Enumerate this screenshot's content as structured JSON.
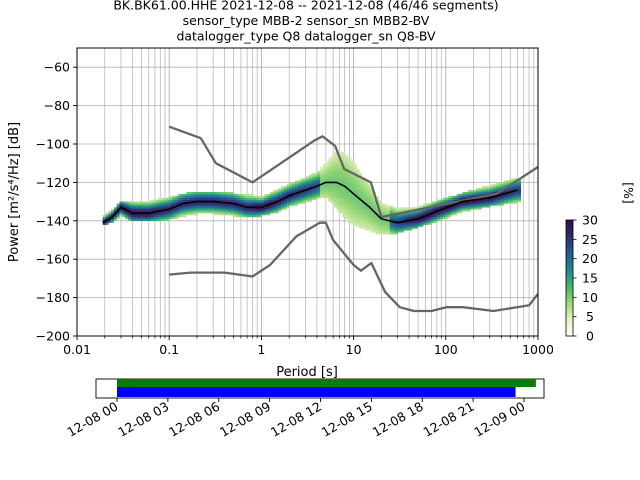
{
  "chart_data": [
    {
      "type": "heatmap",
      "title_lines": [
        "BK.BK61.00.HHE   2021-12-08 -- 2021-12-08  (46/46 segments)",
        "sensor_type MBB-2 sensor_sn MBB2-BV",
        "datalogger_type Q8 datalogger_sn Q8-BV"
      ],
      "xlabel": "Period [s]",
      "ylabel": "Power [m²/s⁴/Hz] [dB]",
      "xscale": "log",
      "xlim": [
        0.01,
        1000
      ],
      "ylim": [
        -200,
        -50
      ],
      "xticks": [
        "0.01",
        "0.1",
        "1",
        "10",
        "100",
        "1000"
      ],
      "yticks": [
        "−200",
        "−180",
        "−160",
        "−140",
        "−120",
        "−100",
        "−80",
        "−60"
      ],
      "grid": true,
      "colorbar": {
        "label": "[%]",
        "range": [
          0,
          30
        ],
        "ticks": [
          "0",
          "5",
          "10",
          "15",
          "20",
          "25",
          "30"
        ],
        "colors": [
          "#ffffff",
          "#e8f3c6",
          "#9ed87a",
          "#3fb56b",
          "#1f8a8a",
          "#285a94",
          "#2e2d6c",
          "#3a0a48"
        ]
      },
      "noise_model_upper": [
        [
          0.1,
          -91
        ],
        [
          0.22,
          -97
        ],
        [
          0.32,
          -110
        ],
        [
          0.8,
          -120
        ],
        [
          3.8,
          -98
        ],
        [
          4.6,
          -96
        ],
        [
          6.3,
          -101
        ],
        [
          7.9,
          -113
        ],
        [
          15.4,
          -120
        ],
        [
          20,
          -138
        ],
        [
          354.8,
          -126
        ],
        [
          1000,
          -112
        ]
      ],
      "noise_model_lower": [
        [
          0.1,
          -168
        ],
        [
          0.17,
          -167
        ],
        [
          0.4,
          -167
        ],
        [
          0.8,
          -169
        ],
        [
          1.24,
          -163
        ],
        [
          2.4,
          -148
        ],
        [
          4.3,
          -141
        ],
        [
          5,
          -141
        ],
        [
          6,
          -150
        ],
        [
          10,
          -163
        ],
        [
          12,
          -166
        ],
        [
          15.6,
          -162
        ],
        [
          21.9,
          -177
        ],
        [
          31.6,
          -185
        ],
        [
          45,
          -187
        ],
        [
          70,
          -187
        ],
        [
          101,
          -185
        ],
        [
          154,
          -185
        ],
        [
          328,
          -187
        ],
        [
          800,
          -184
        ],
        [
          1000,
          -178
        ]
      ],
      "median_psd": [
        [
          0.019,
          -141
        ],
        [
          0.024,
          -138
        ],
        [
          0.03,
          -133
        ],
        [
          0.04,
          -136
        ],
        [
          0.06,
          -136
        ],
        [
          0.1,
          -134
        ],
        [
          0.14,
          -131
        ],
        [
          0.2,
          -130
        ],
        [
          0.3,
          -130
        ],
        [
          0.5,
          -131
        ],
        [
          0.7,
          -133
        ],
        [
          1,
          -133
        ],
        [
          1.5,
          -130
        ],
        [
          2,
          -127
        ],
        [
          3,
          -124
        ],
        [
          4,
          -122
        ],
        [
          5,
          -120
        ],
        [
          6.5,
          -120
        ],
        [
          8,
          -122
        ],
        [
          10,
          -126
        ],
        [
          15,
          -133
        ],
        [
          20,
          -139
        ],
        [
          30,
          -141
        ],
        [
          50,
          -139
        ],
        [
          80,
          -135
        ],
        [
          150,
          -130
        ],
        [
          300,
          -128
        ],
        [
          600,
          -124
        ]
      ],
      "ppsd_band": [
        [
          0.02,
          -142,
          -137
        ],
        [
          0.025,
          -140,
          -134
        ],
        [
          0.03,
          -137,
          -130
        ],
        [
          0.04,
          -140,
          -130
        ],
        [
          0.06,
          -140,
          -130
        ],
        [
          0.1,
          -139,
          -128
        ],
        [
          0.15,
          -137,
          -126
        ],
        [
          0.2,
          -136,
          -125
        ],
        [
          0.3,
          -136,
          -125
        ],
        [
          0.5,
          -137,
          -126
        ],
        [
          0.8,
          -138,
          -127
        ],
        [
          1,
          -137,
          -128
        ],
        [
          1.5,
          -135,
          -124
        ],
        [
          2,
          -132,
          -121
        ],
        [
          3,
          -130,
          -118
        ],
        [
          4,
          -128,
          -115
        ],
        [
          5,
          -127,
          -110
        ],
        [
          6.5,
          -133,
          -104
        ],
        [
          8,
          -138,
          -105
        ],
        [
          10,
          -142,
          -110
        ],
        [
          15,
          -145,
          -122
        ],
        [
          20,
          -147,
          -131
        ],
        [
          30,
          -146,
          -134
        ],
        [
          50,
          -143,
          -133
        ],
        [
          80,
          -140,
          -130
        ],
        [
          150,
          -135,
          -126
        ],
        [
          300,
          -132,
          -122
        ],
        [
          600,
          -130,
          -118
        ]
      ]
    },
    {
      "type": "timeline",
      "xlim": [
        "12-08 00",
        "12-09 00"
      ],
      "xticks": [
        "12-08 00",
        "12-08 03",
        "12-08 06",
        "12-08 09",
        "12-08 12",
        "12-08 15",
        "12-08 18",
        "12-08 21",
        "12-09 00"
      ],
      "bars": [
        {
          "color": "#008000",
          "start_h": 0,
          "end_h": 24.7
        },
        {
          "color": "#0000ff",
          "start_h": 0,
          "end_h": 23.5
        }
      ]
    }
  ]
}
